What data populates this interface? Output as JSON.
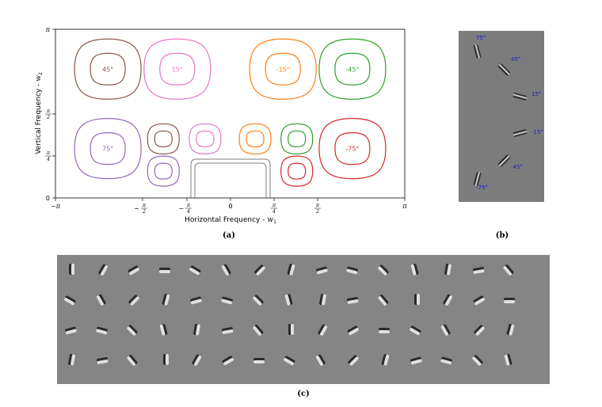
{
  "panel_a": {
    "xlabel_text": "Horizontal Frequency - ",
    "xlabel_var": "w",
    "xlabel_sub": "1",
    "ylabel_text": "Vertical Frequency - ",
    "ylabel_var": "w",
    "ylabel_sub": "2",
    "x_ticks": [
      "−π",
      "−",
      "−",
      "0",
      "",
      "",
      "π"
    ],
    "x_tick_frac_num": [
      "",
      "π",
      "π",
      "",
      "π",
      "π",
      ""
    ],
    "x_tick_frac_den": [
      "",
      "2",
      "4",
      "",
      "4",
      "2",
      ""
    ],
    "y_ticks": [
      "0",
      "",
      "",
      "π"
    ],
    "y_tick_frac_num": [
      "",
      "π",
      "π",
      ""
    ],
    "y_tick_frac_den": [
      "",
      "4",
      "2",
      ""
    ],
    "caption": "(a)"
  },
  "chart_data": {
    "type": "contour",
    "xlabel": "Horizontal Frequency - w1",
    "ylabel": "Vertical Frequency - w2",
    "xlim": [
      -3.1416,
      3.1416
    ],
    "ylim": [
      0,
      3.1416
    ],
    "x_tick_values": [
      -3.1416,
      -1.5708,
      -0.7854,
      0,
      0.7854,
      1.5708,
      3.1416
    ],
    "y_tick_values": [
      0,
      0.7854,
      1.5708,
      3.1416
    ],
    "filters": [
      {
        "label": "45°",
        "center": [
          -2.2,
          2.4
        ],
        "color": "#8c564b",
        "scale": "fine"
      },
      {
        "label": "15°",
        "center": [
          -0.95,
          2.4
        ],
        "color": "#e377c2",
        "scale": "fine"
      },
      {
        "label": "-15°",
        "center": [
          0.95,
          2.4
        ],
        "color": "#ff7f0e",
        "scale": "fine"
      },
      {
        "label": "-45°",
        "center": [
          2.2,
          2.4
        ],
        "color": "#2ca02c",
        "scale": "fine"
      },
      {
        "label": "75°",
        "center": [
          -2.2,
          0.92
        ],
        "color": "#9467bd",
        "scale": "fine"
      },
      {
        "label": "-75°",
        "center": [
          2.2,
          0.92
        ],
        "color": "#d62728",
        "scale": "fine"
      },
      {
        "label": "",
        "center": [
          -1.2,
          1.1
        ],
        "color": "#8c564b",
        "scale": "coarse"
      },
      {
        "label": "",
        "center": [
          -0.45,
          1.1
        ],
        "color": "#e377c2",
        "scale": "coarse"
      },
      {
        "label": "",
        "center": [
          0.45,
          1.1
        ],
        "color": "#ff7f0e",
        "scale": "coarse"
      },
      {
        "label": "",
        "center": [
          1.2,
          1.1
        ],
        "color": "#2ca02c",
        "scale": "coarse"
      },
      {
        "label": "",
        "center": [
          -1.2,
          0.5
        ],
        "color": "#9467bd",
        "scale": "coarse"
      },
      {
        "label": "",
        "center": [
          1.2,
          0.5
        ],
        "color": "#d62728",
        "scale": "coarse"
      }
    ],
    "lowpass": {
      "x_range": [
        -0.7854,
        0.7854
      ],
      "y_top": 0.7854,
      "color": "#7f7f7f"
    }
  },
  "panel_b": {
    "caption": "(b)",
    "orientations": [
      "75°",
      "45°",
      "15°",
      "-15°",
      "-45°",
      "-75°"
    ]
  },
  "panel_c": {
    "caption": "(c)",
    "rows": 4,
    "cols": 15
  }
}
